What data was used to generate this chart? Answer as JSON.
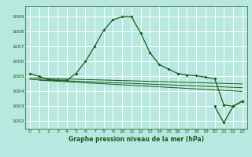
{
  "title": "Graphe pression niveau de la mer (hPa)",
  "bg_color": "#b8e8e0",
  "grid_color": "#ffffff",
  "line_color": "#1a5c1a",
  "xlim": [
    -0.5,
    23.5
  ],
  "ylim": [
    1001.5,
    1009.7
  ],
  "yticks": [
    1002,
    1003,
    1004,
    1005,
    1006,
    1007,
    1008,
    1009
  ],
  "xticks": [
    0,
    1,
    2,
    3,
    4,
    5,
    6,
    7,
    8,
    9,
    10,
    11,
    12,
    13,
    14,
    15,
    16,
    17,
    18,
    19,
    20,
    21,
    22,
    23
  ],
  "main_line": {
    "x": [
      0,
      1,
      2,
      3,
      4,
      5,
      6,
      7,
      8,
      9,
      10,
      11,
      12,
      13,
      14,
      15,
      16,
      17,
      18,
      19,
      20,
      21,
      22,
      23
    ],
    "y": [
      1005.2,
      1005.0,
      1004.8,
      1004.75,
      1004.75,
      1005.2,
      1006.0,
      1007.0,
      1008.1,
      1008.8,
      1009.0,
      1009.0,
      1007.9,
      1006.6,
      1005.8,
      1005.5,
      1005.2,
      1005.1,
      1005.05,
      1004.95,
      1004.85,
      1003.1,
      1003.0,
      1003.35
    ]
  },
  "flat_line1": {
    "x": [
      0,
      23
    ],
    "y": [
      1004.9,
      1004.5
    ]
  },
  "flat_line2": {
    "x": [
      0,
      23
    ],
    "y": [
      1004.8,
      1004.25
    ]
  },
  "flat_line3": {
    "x": [
      1,
      23
    ],
    "y": [
      1004.75,
      1004.0
    ]
  },
  "v_line": {
    "x": [
      20,
      21,
      22,
      23
    ],
    "y": [
      1003.0,
      1001.9,
      1003.0,
      1003.35
    ]
  },
  "figsize": [
    3.2,
    2.0
  ],
  "dpi": 100
}
